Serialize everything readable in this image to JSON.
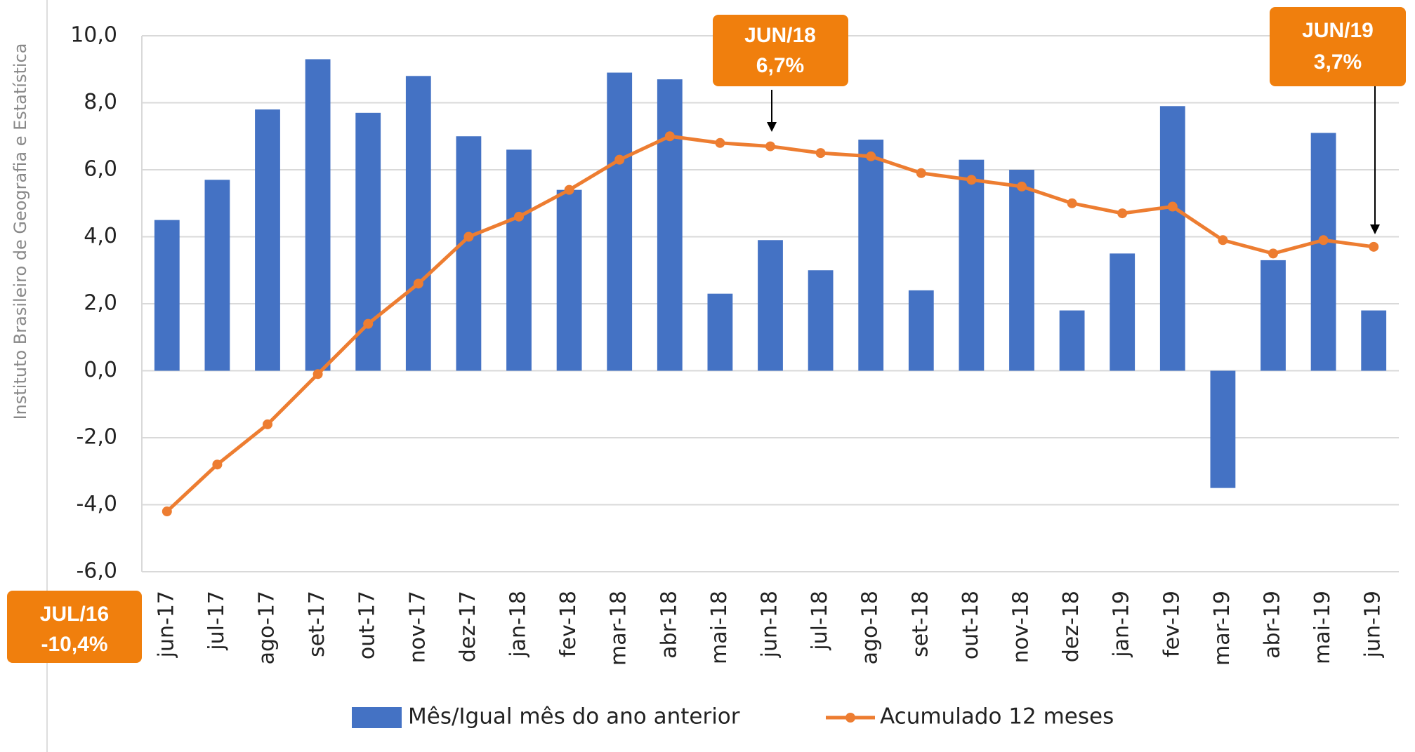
{
  "chart_data": {
    "type": "bar+line",
    "side_label": "Instituto Brasileiro de Geografia e Estatística",
    "categories": [
      "jun-17",
      "jul-17",
      "ago-17",
      "set-17",
      "out-17",
      "nov-17",
      "dez-17",
      "jan-18",
      "fev-18",
      "mar-18",
      "abr-18",
      "mai-18",
      "jun-18",
      "jul-18",
      "ago-18",
      "set-18",
      "out-18",
      "nov-18",
      "dez-18",
      "jan-19",
      "fev-19",
      "mar-19",
      "abr-19",
      "mai-19",
      "jun-19"
    ],
    "series": [
      {
        "name": "Mês/Igual mês do ano anterior",
        "type": "bar",
        "color": "#4472c4",
        "values": [
          4.5,
          5.7,
          7.8,
          9.3,
          7.7,
          8.8,
          7.0,
          6.6,
          5.4,
          8.9,
          8.7,
          2.3,
          3.9,
          3.0,
          6.9,
          2.4,
          6.3,
          6.0,
          1.8,
          3.5,
          7.9,
          -3.5,
          3.3,
          7.1,
          1.8
        ]
      },
      {
        "name": "Acumulado 12 meses",
        "type": "line",
        "color": "#ed7d31",
        "values": [
          -4.2,
          -2.8,
          -1.6,
          -0.1,
          1.4,
          2.6,
          4.0,
          4.6,
          5.4,
          6.3,
          7.0,
          6.8,
          6.7,
          6.5,
          6.4,
          5.9,
          5.7,
          5.5,
          5.0,
          4.7,
          4.9,
          3.9,
          3.5,
          3.9,
          3.7
        ]
      }
    ],
    "ylim": [
      -6,
      10
    ],
    "yticks": [
      {
        "value": -6,
        "label": "-6,0"
      },
      {
        "value": -4,
        "label": "-4,0"
      },
      {
        "value": -2,
        "label": "-2,0"
      },
      {
        "value": 0,
        "label": "0,0"
      },
      {
        "value": 2,
        "label": "2,0"
      },
      {
        "value": 4,
        "label": "4,0"
      },
      {
        "value": 6,
        "label": "6,0"
      },
      {
        "value": 8,
        "label": "8,0"
      },
      {
        "value": 10,
        "label": "10,0"
      }
    ],
    "grid": true,
    "legend": "bottom",
    "annotations": [
      {
        "title": "JUN/18",
        "text": "6,7%"
      },
      {
        "title": "JUN/19",
        "text": "3,7%"
      },
      {
        "title": "JUL/16",
        "text": "-10,4%"
      }
    ]
  }
}
